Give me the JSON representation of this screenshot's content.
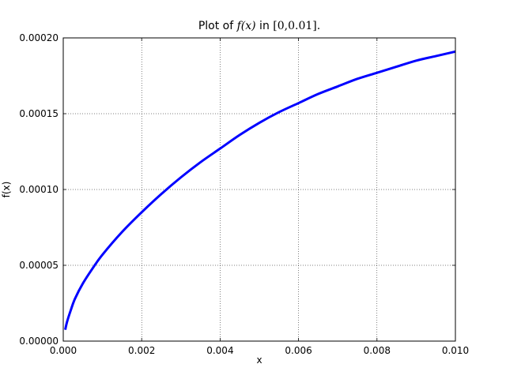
{
  "chart_data": {
    "type": "line",
    "title_plain": "Plot of ",
    "title_fx": "f(x)",
    "title_mid": " in ",
    "title_interval": "[0,0.01]",
    "title_end": ".",
    "xlabel": "x",
    "ylabel": "f(x)",
    "xlim": [
      0,
      0.01
    ],
    "ylim": [
      0,
      0.0002
    ],
    "grid": true,
    "xticks": [
      0,
      0.002,
      0.004,
      0.006,
      0.008,
      0.01
    ],
    "xtick_labels": [
      "0.000",
      "0.002",
      "0.004",
      "0.006",
      "0.008",
      "0.010"
    ],
    "yticks": [
      0,
      5e-05,
      0.0001,
      0.00015,
      0.0002
    ],
    "ytick_labels": [
      "0.00000",
      "0.00005",
      "0.00010",
      "0.00015",
      "0.00020"
    ],
    "series": [
      {
        "color": "#0000ff",
        "x": [
          5e-05,
          0.0001,
          0.0002,
          0.0003,
          0.0005,
          0.00075,
          0.001,
          0.0015,
          0.002,
          0.0025,
          0.003,
          0.0035,
          0.004,
          0.0045,
          0.005,
          0.0055,
          0.006,
          0.0065,
          0.007,
          0.0075,
          0.008,
          0.0085,
          0.009,
          0.0095,
          0.01
        ],
        "y": [
          7.5e-06,
          1.3e-05,
          2.1e-05,
          2.8e-05,
          3.8e-05,
          4.8e-05,
          5.7e-05,
          7.2e-05,
          8.5e-05,
          9.7e-05,
          0.000108,
          0.000118,
          0.000127,
          0.000136,
          0.000144,
          0.000151,
          0.000157,
          0.000163,
          0.000168,
          0.000173,
          0.000177,
          0.000181,
          0.000185,
          0.000188,
          0.000191
        ]
      }
    ]
  }
}
